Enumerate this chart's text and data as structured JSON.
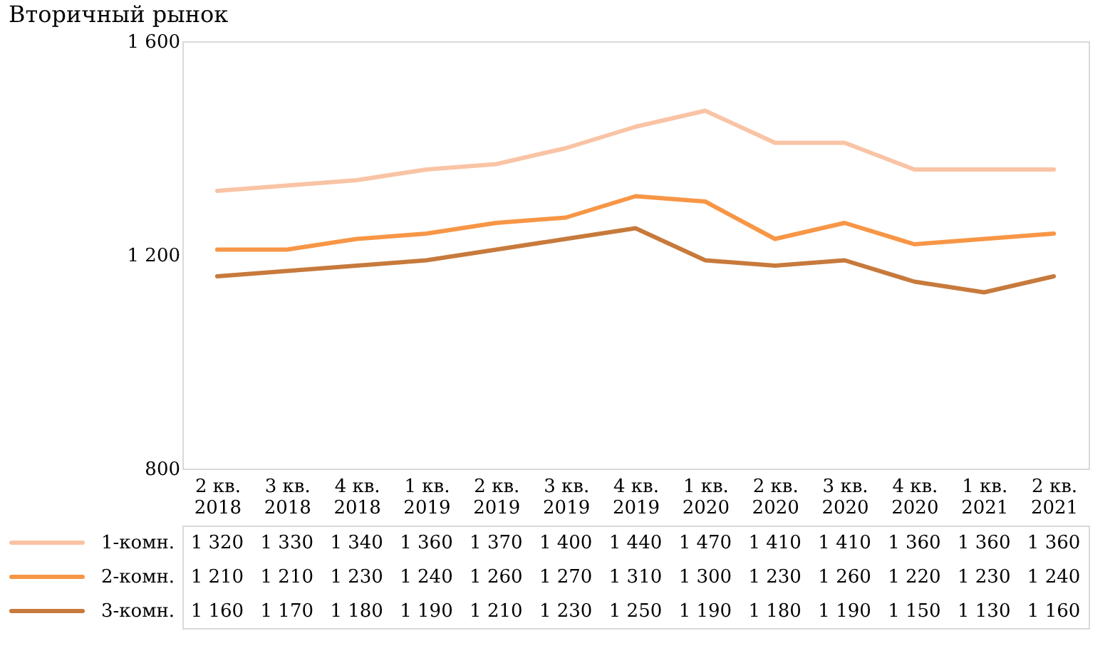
{
  "chart_data": {
    "type": "line",
    "title": "Вторичный рынок",
    "categories": [
      "2 кв. 2018",
      "3 кв. 2018",
      "4 кв. 2018",
      "1 кв. 2019",
      "2 кв. 2019",
      "3 кв. 2019",
      "4 кв. 2019",
      "1 кв. 2020",
      "2 кв. 2020",
      "3 кв. 2020",
      "4 кв. 2020",
      "1 кв. 2021",
      "2 кв. 2021"
    ],
    "series": [
      {
        "name": "1-комн.",
        "color": "#f9c4a5",
        "values": [
          1320,
          1330,
          1340,
          1360,
          1370,
          1400,
          1440,
          1470,
          1410,
          1410,
          1360,
          1360,
          1360
        ],
        "value_labels": [
          "1 320",
          "1 330",
          "1 340",
          "1 360",
          "1 370",
          "1 400",
          "1 440",
          "1 470",
          "1 410",
          "1 410",
          "1 360",
          "1 360",
          "1 360"
        ]
      },
      {
        "name": "2-комн.",
        "color": "#f79646",
        "values": [
          1210,
          1210,
          1230,
          1240,
          1260,
          1270,
          1310,
          1300,
          1230,
          1260,
          1220,
          1230,
          1240
        ],
        "value_labels": [
          "1 210",
          "1 210",
          "1 230",
          "1 240",
          "1 260",
          "1 270",
          "1 310",
          "1 300",
          "1 230",
          "1 260",
          "1 220",
          "1 230",
          "1 240"
        ]
      },
      {
        "name": "3-комн.",
        "color": "#c77a3c",
        "values": [
          1160,
          1170,
          1180,
          1190,
          1210,
          1230,
          1250,
          1190,
          1180,
          1190,
          1150,
          1130,
          1160
        ],
        "value_labels": [
          "1 160",
          "1 170",
          "1 180",
          "1 190",
          "1 210",
          "1 230",
          "1 250",
          "1 190",
          "1 180",
          "1 190",
          "1 150",
          "1 130",
          "1 160"
        ]
      }
    ],
    "ylim": [
      800,
      1600
    ],
    "yticks": [
      {
        "value": 800,
        "label": "800"
      },
      {
        "value": 1200,
        "label": "1 200"
      },
      {
        "value": 1600,
        "label": "1 600"
      }
    ],
    "legend": "bottom",
    "marker": "none",
    "line_style": "solid"
  }
}
